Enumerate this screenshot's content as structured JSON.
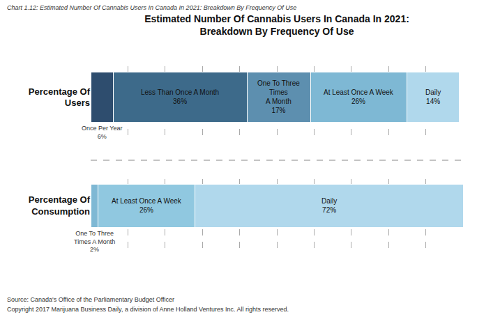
{
  "chart_data": [
    {
      "type": "bar",
      "orientation": "horizontal",
      "stacked": true,
      "title": "Estimated Number Of Cannabis Users In Canada In 2021:\nBreakdown By Frequency Of Use",
      "annotations": [
        "Chart 1.12: Estimated Number Of Cannabis Users In Canada In 2021: Breakdown By Frequency Of Use"
      ],
      "categories": [
        "Percentage Of\nUsers"
      ],
      "series": [
        {
          "values": [
            6
          ],
          "value_labels": [
            "Once Per Year\n6%"
          ],
          "color": "#2e4d6e"
        },
        {
          "values": [
            36
          ],
          "value_labels": [
            "Less Than Once A Month\n36%"
          ],
          "color": "#3d6a8a"
        },
        {
          "values": [
            17
          ],
          "value_labels": [
            "One To Three\nTimes\nA Month\n17%"
          ],
          "color": "#5d8faf"
        },
        {
          "values": [
            26
          ],
          "value_labels": [
            "At Least Once A Week\n26%"
          ],
          "color": "#7eb8d4"
        },
        {
          "values": [
            14
          ],
          "value_labels": [
            "Daily\n14%"
          ],
          "color": "#b0d8ec"
        }
      ],
      "xlim": [
        0,
        100
      ],
      "xticks": [
        0,
        10,
        20,
        30,
        40,
        50,
        60,
        70,
        80,
        90,
        100
      ],
      "grid": true,
      "data_labels": true,
      "tick_labels": "y"
    },
    {
      "type": "bar",
      "orientation": "horizontal",
      "stacked": true,
      "annotations": [
        "Source: Canada's Office of the Parliamentary Budget Officer",
        "Copyright 2017 Marijuana Business Daily, a division of Anne Holland Ventures Inc. All rights reserved."
      ],
      "categories": [
        "Percentage Of\nConsumption"
      ],
      "series": [
        {
          "values": [
            2
          ],
          "value_labels": [
            "One To Three\nTimes A Month\n2%"
          ],
          "color": "#7eb8d4"
        },
        {
          "values": [
            26
          ],
          "value_labels": [
            "At Least Once A Week\n26%"
          ],
          "color": "#90c8e0"
        },
        {
          "values": [
            72
          ],
          "value_labels": [
            "Daily\n72%"
          ],
          "color": "#b0d8ec"
        }
      ],
      "xlim": [
        0,
        100
      ],
      "xticks": [
        0,
        10,
        20,
        30,
        40,
        50,
        60,
        70,
        80,
        90,
        100
      ],
      "grid": true,
      "data_labels": true,
      "tick_labels": "y"
    }
  ]
}
